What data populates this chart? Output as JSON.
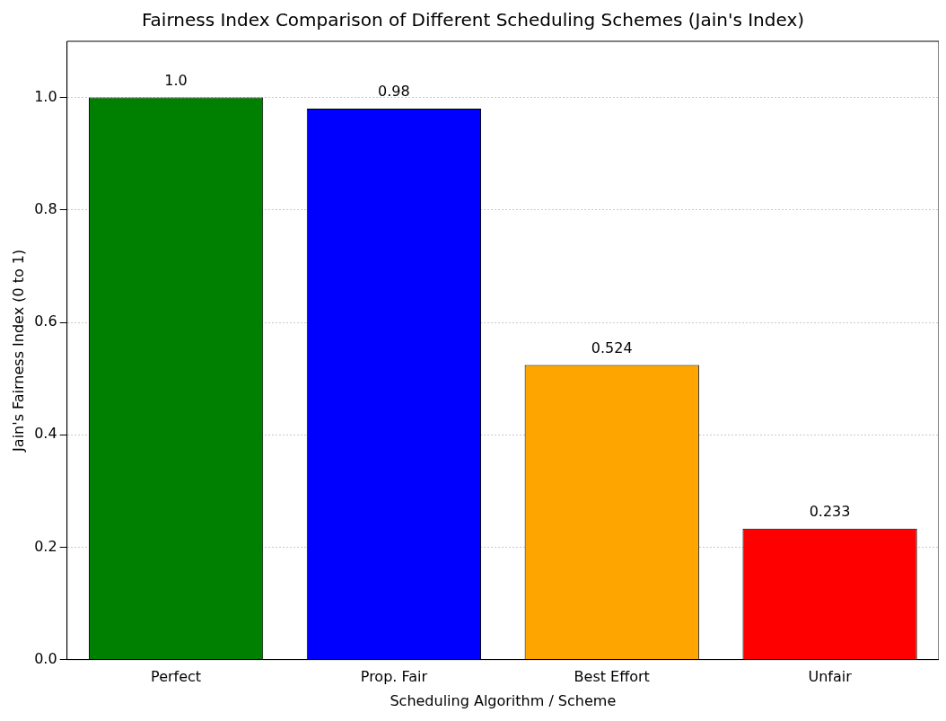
{
  "chart_data": {
    "type": "bar",
    "title": "Fairness Index Comparison of Different Scheduling Schemes (Jain's Index)",
    "xlabel": "Scheduling Algorithm / Scheme",
    "ylabel": "Jain's Fairness Index (0 to 1)",
    "categories": [
      "Perfect",
      "Prop. Fair",
      "Best Effort",
      "Unfair"
    ],
    "values": [
      1.0,
      0.98,
      0.524,
      0.233
    ],
    "colors": [
      "#008000",
      "#0000ff",
      "#ffa500",
      "#ff0000"
    ],
    "value_labels": [
      "1.0",
      "0.98",
      "0.524",
      "0.233"
    ],
    "ylim": [
      0,
      1.1
    ],
    "yticks": [
      {
        "value": 0,
        "label": "0.0"
      },
      {
        "value": 0.2,
        "label": "0.2"
      },
      {
        "value": 0.4,
        "label": "0.4"
      },
      {
        "value": 0.6,
        "label": "0.6"
      },
      {
        "value": 0.8,
        "label": "0.8"
      },
      {
        "value": 1.0,
        "label": "1.0"
      }
    ],
    "grid": "y"
  }
}
